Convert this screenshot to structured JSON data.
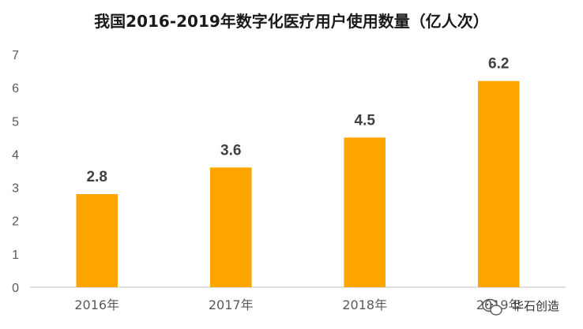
{
  "chart_data": {
    "type": "bar",
    "title": "我国2016-2019年数字化医疗用户使用数量（亿人次）",
    "categories": [
      "2016年",
      "2017年",
      "2018年",
      "2019年"
    ],
    "values": [
      2.8,
      3.6,
      4.5,
      6.2
    ],
    "data_labels": [
      "2.8",
      "3.6",
      "4.5",
      "6.2"
    ],
    "y_ticks": [
      "0",
      "1",
      "2",
      "3",
      "4",
      "5",
      "6",
      "7"
    ],
    "ylim": [
      0,
      7
    ],
    "xlabel": "",
    "ylabel": "",
    "grid": false,
    "legend": "none",
    "bar_color": "#FFA500"
  },
  "watermark": {
    "text": "华石创造",
    "icon": "wechat-icon"
  }
}
